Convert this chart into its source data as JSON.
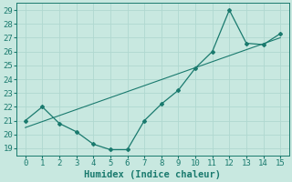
{
  "x": [
    0,
    1,
    2,
    3,
    4,
    5,
    6,
    7,
    8,
    9,
    10,
    11,
    12,
    13,
    14,
    15
  ],
  "y": [
    21,
    22,
    20.8,
    20.2,
    19.3,
    18.9,
    18.9,
    21.0,
    22.2,
    23.2,
    24.8,
    26.0,
    29.0,
    26.6,
    26.5,
    27.3
  ],
  "trend_x": [
    0,
    15
  ],
  "trend_y": [
    20.5,
    27.0
  ],
  "line_color": "#1a7a6e",
  "bg_color": "#c8e8e0",
  "grid_color": "#b0d8d0",
  "xlabel": "Humidex (Indice chaleur)",
  "xlim": [
    -0.5,
    15.5
  ],
  "ylim": [
    18.5,
    29.5
  ],
  "yticks": [
    19,
    20,
    21,
    22,
    23,
    24,
    25,
    26,
    27,
    28,
    29
  ],
  "xticks": [
    0,
    1,
    2,
    3,
    4,
    5,
    6,
    7,
    8,
    9,
    10,
    11,
    12,
    13,
    14,
    15
  ],
  "xlabel_fontsize": 7.5,
  "tick_fontsize": 6.5
}
